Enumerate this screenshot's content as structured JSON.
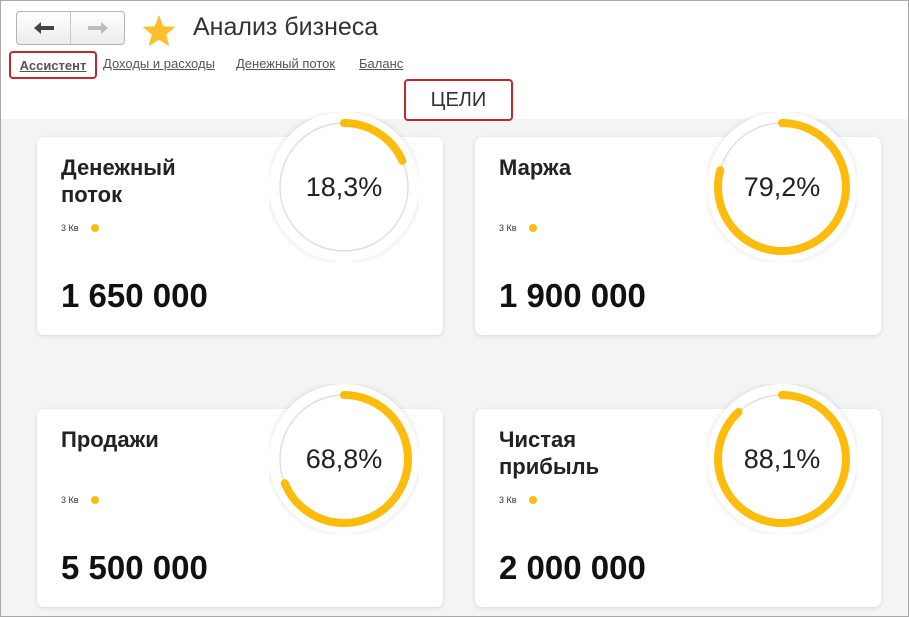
{
  "app": {
    "title": "Анализ бизнеса"
  },
  "nav": {
    "back_icon": "arrow-left-icon",
    "forward_icon": "arrow-right-icon",
    "favorite_icon": "star-icon",
    "star_color": "#fdbf2d"
  },
  "tabs": [
    {
      "label": "Ассистент",
      "active": true
    },
    {
      "label": "Доходы и расходы",
      "active": false
    },
    {
      "label": "Денежный поток",
      "active": false
    },
    {
      "label": "Баланс",
      "active": false
    }
  ],
  "section_title": "ЦЕЛИ",
  "colors": {
    "accent": "#fdbb0c",
    "highlight_border": "#c0282e",
    "track": "#e0e0e0"
  },
  "cards": [
    {
      "title": "Денежный поток",
      "period": "3 Кв",
      "value": "1 650 000",
      "percent_label": "18,3%",
      "progress": 0.183
    },
    {
      "title": "Маржа",
      "period": "3 Кв",
      "value": "1 900 000",
      "percent_label": "79,2%",
      "progress": 0.792
    },
    {
      "title": "Продажи",
      "period": "3 Кв",
      "value": "5 500 000",
      "percent_label": "68,8%",
      "progress": 0.688
    },
    {
      "title": "Чистая прибыль",
      "period": "3 Кв",
      "value": "2 000 000",
      "percent_label": "88,1%",
      "progress": 0.881
    }
  ]
}
